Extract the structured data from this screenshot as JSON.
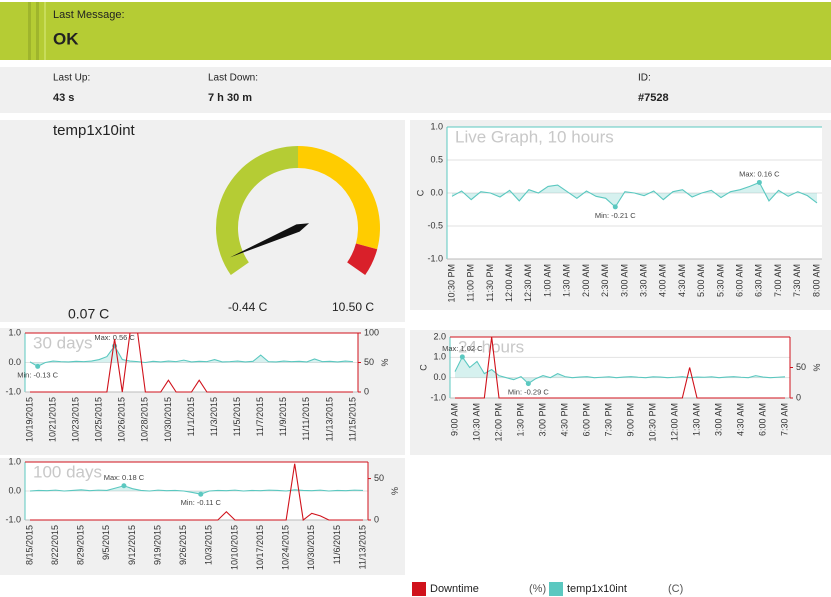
{
  "status": {
    "label": "Last Message:",
    "value": "OK"
  },
  "stats": [
    {
      "label": "Last Up:",
      "value": "43 s"
    },
    {
      "label": "Last Down:",
      "value": "7 h 30 m"
    },
    {
      "label": "ID:",
      "value": "#7528"
    }
  ],
  "gauge": {
    "title": "temp1x10int",
    "value": 0.07,
    "value_label": "0.07 C",
    "min": -0.44,
    "min_label": "-0.44 C",
    "max": 10.5,
    "max_label": "10.50 C"
  },
  "chart_data": [
    {
      "type": "line",
      "title": "Live Graph, 10 hours",
      "ylabel": "C",
      "categories": [
        "10:30 PM",
        null,
        "11:00 PM",
        null,
        "11:30 PM",
        null,
        "12:00 AM",
        null,
        "12:30 AM",
        null,
        "1:00 AM",
        null,
        "1:30 AM",
        null,
        "2:00 AM",
        null,
        "2:30 AM",
        null,
        "3:00 AM",
        null,
        "3:30 AM",
        null,
        "4:00 AM",
        null,
        "4:30 AM",
        null,
        "5:00 AM",
        null,
        "5:30 AM",
        null,
        "6:00 AM",
        null,
        "6:30 AM",
        null,
        "7:00 AM",
        null,
        "7:30 AM",
        null,
        "8:00 AM"
      ],
      "series": [
        {
          "color": "#5bc8c0",
          "area": true,
          "max_label": "Max: 0.16 C",
          "min_label": "Min: -0.21 C",
          "values": [
            -0.05,
            0.03,
            -0.1,
            0.02,
            0.0,
            -0.06,
            0.04,
            -0.12,
            0.05,
            0.0,
            0.1,
            0.12,
            0.02,
            -0.08,
            0.03,
            -0.05,
            -0.08,
            -0.21,
            0.02,
            0.0,
            -0.04,
            0.03,
            -0.1,
            0.02,
            0.05,
            -0.06,
            0.0,
            0.04,
            -0.07,
            0.02,
            0.05,
            0.1,
            0.16,
            -0.12,
            0.04,
            -0.05,
            0.02,
            -0.04,
            -0.15
          ]
        }
      ],
      "ylim": [
        -1,
        1
      ],
      "yticks": [
        {
          "value": 1,
          "label": "1.0"
        },
        {
          "value": 0.5,
          "label": "0.5"
        },
        {
          "value": 0,
          "label": "0.0"
        },
        {
          "value": -0.5,
          "label": "-0.5"
        },
        {
          "value": -1,
          "label": "-1.0"
        }
      ],
      "grid": true
    },
    {
      "type": "line",
      "title": "30 days",
      "y2label": "%",
      "categories": [
        "10/19/2015",
        null,
        null,
        "10/21/2015",
        null,
        null,
        "10/23/2015",
        null,
        null,
        "10/25/2015",
        null,
        null,
        "10/26/2015",
        null,
        null,
        "10/28/2015",
        null,
        null,
        "10/30/2015",
        null,
        null,
        "11/1/2015",
        null,
        null,
        "11/3/2015",
        null,
        null,
        "11/5/2015",
        null,
        null,
        "11/7/2015",
        null,
        null,
        "11/9/2015",
        null,
        null,
        "11/11/2015",
        null,
        null,
        "11/13/2015",
        null,
        null,
        "11/15/2015"
      ],
      "series": [
        {
          "color": "#5bc8c0",
          "area": true,
          "max_label": "Max: 0.56 C",
          "min_label": "Min: -0.13 C",
          "values": [
            0.02,
            -0.13,
            0.0,
            0.05,
            0.03,
            0.02,
            0.04,
            0.03,
            0.05,
            0.1,
            0.2,
            0.56,
            0.1,
            0.05,
            0.03,
            0.0,
            0.04,
            0.02,
            0.05,
            0.03,
            0.08,
            0.02,
            0.04,
            0.03,
            0.1,
            0.02,
            0.03,
            0.05,
            0.02,
            0.04,
            0.25,
            0.03,
            0.02,
            0.05,
            0.03,
            0.04,
            0.02,
            0.12,
            0.03,
            0.04,
            0.02,
            0.05,
            0.03
          ]
        },
        {
          "color": "#d0121b",
          "axis": "y2",
          "values": [
            0,
            0,
            0,
            0,
            0,
            0,
            0,
            0,
            0,
            0,
            0,
            90,
            0,
            100,
            100,
            0,
            0,
            0,
            20,
            0,
            0,
            0,
            20,
            0,
            0,
            0,
            0,
            0,
            0,
            0,
            0,
            0,
            0,
            0,
            0,
            0,
            0,
            0,
            0,
            0,
            0,
            0,
            0
          ]
        }
      ],
      "ylim": [
        -1,
        1
      ],
      "yticks": [
        {
          "value": 1,
          "label": "1.0"
        },
        {
          "value": 0,
          "label": "0.0"
        },
        {
          "value": -1,
          "label": "-1.0"
        }
      ],
      "y2lim": [
        0,
        100
      ],
      "y2ticks": [
        0,
        50,
        100
      ],
      "grid": true
    },
    {
      "type": "line",
      "title": "24 hours",
      "ylabel": "C",
      "y2label": "%",
      "categories": [
        "9:00 AM",
        null,
        null,
        "10:30 AM",
        null,
        null,
        "12:00 PM",
        null,
        null,
        "1:30 PM",
        null,
        null,
        "3:00 PM",
        null,
        null,
        "4:30 PM",
        null,
        null,
        "6:00 PM",
        null,
        null,
        "7:30 PM",
        null,
        null,
        "9:00 PM",
        null,
        null,
        "10:30 PM",
        null,
        null,
        "12:00 AM",
        null,
        null,
        "1:30 AM",
        null,
        null,
        "3:00 AM",
        null,
        null,
        "4:30 AM",
        null,
        null,
        "6:00 AM",
        null,
        null,
        "7:30 AM"
      ],
      "series": [
        {
          "color": "#5bc8c0",
          "area": true,
          "max_label": "Max: 1.02 C",
          "min_label": "Min: -0.29 C",
          "values": [
            0.3,
            1.02,
            0.5,
            0.8,
            0.2,
            0.4,
            0.1,
            0.0,
            -0.1,
            0.05,
            -0.29,
            -0.05,
            0.1,
            0.0,
            0.2,
            0.05,
            0.0,
            0.03,
            0.05,
            0.0,
            0.02,
            0.04,
            0.0,
            0.03,
            0.05,
            0.02,
            0.0,
            0.04,
            0.03,
            0.0,
            0.02,
            0.05,
            0.0,
            0.03,
            0.02,
            0.04,
            0.0,
            0.03,
            0.05,
            0.02,
            0.0,
            0.1,
            0.03,
            0.0,
            0.02,
            0.04
          ]
        },
        {
          "color": "#d0121b",
          "axis": "y2",
          "values": [
            0,
            0,
            0,
            0,
            0,
            100,
            0,
            0,
            0,
            0,
            0,
            0,
            0,
            0,
            0,
            0,
            0,
            0,
            0,
            0,
            0,
            0,
            0,
            0,
            0,
            0,
            0,
            0,
            0,
            0,
            0,
            0,
            50,
            0,
            0,
            0,
            0,
            0,
            0,
            0,
            0,
            0,
            0,
            0,
            0,
            0
          ]
        }
      ],
      "ylim": [
        -1,
        2
      ],
      "yticks": [
        {
          "value": 2,
          "label": "2.0"
        },
        {
          "value": 1,
          "label": "1.0"
        },
        {
          "value": 0,
          "label": "0.0"
        },
        {
          "value": -1,
          "label": "-1.0"
        }
      ],
      "y2lim": [
        0,
        100
      ],
      "y2ticks": [
        0,
        50
      ],
      "grid": true
    },
    {
      "type": "line",
      "title": "100 days",
      "y2label": "%",
      "categories": [
        "8/15/2015",
        null,
        null,
        "8/22/2015",
        null,
        null,
        "8/29/2015",
        null,
        null,
        "9/5/2015",
        null,
        null,
        "9/12/2015",
        null,
        null,
        "9/19/2015",
        null,
        null,
        "9/26/2015",
        null,
        null,
        "10/3/2015",
        null,
        null,
        "10/10/2015",
        null,
        null,
        "10/17/2015",
        null,
        null,
        "10/24/2015",
        null,
        null,
        "10/30/2015",
        null,
        null,
        "11/6/2015",
        null,
        null,
        "11/13/2015"
      ],
      "series": [
        {
          "color": "#5bc8c0",
          "area": true,
          "max_label": "Max: 0.18 C",
          "min_label": "Min: -0.11 C",
          "values": [
            0.0,
            0.02,
            0.01,
            0.03,
            0.0,
            0.02,
            0.04,
            0.01,
            0.03,
            0.02,
            0.1,
            0.18,
            0.08,
            0.02,
            0.0,
            0.03,
            0.01,
            0.02,
            0.0,
            -0.05,
            -0.11,
            0.0,
            0.02,
            0.01,
            0.03,
            0.0,
            0.02,
            0.01,
            0.03,
            0.02,
            0.0,
            0.04,
            0.02,
            0.01,
            0.03,
            0.0,
            0.02,
            0.01,
            0.03,
            0.02
          ]
        },
        {
          "color": "#d0121b",
          "axis": "y2",
          "values": [
            0,
            0,
            0,
            0,
            0,
            0,
            0,
            0,
            0,
            0,
            0,
            0,
            0,
            0,
            0,
            0,
            0,
            0,
            0,
            0,
            0,
            0,
            0,
            10,
            0,
            0,
            0,
            0,
            0,
            0,
            0,
            68,
            0,
            8,
            5,
            0,
            0,
            0,
            0,
            0
          ]
        }
      ],
      "ylim": [
        -1,
        1
      ],
      "yticks": [
        {
          "value": 1,
          "label": "1.0"
        },
        {
          "value": 0,
          "label": "0.0"
        },
        {
          "value": -1,
          "label": "-1.0"
        }
      ],
      "y2lim": [
        0,
        70
      ],
      "y2ticks": [
        0,
        50
      ],
      "grid": true
    }
  ],
  "legend": [
    {
      "label": "Downtime",
      "unit": "(%)",
      "color": "#d0121b"
    },
    {
      "label": "temp1x10int",
      "unit": "(C)",
      "color": "#5bc8c0"
    }
  ]
}
